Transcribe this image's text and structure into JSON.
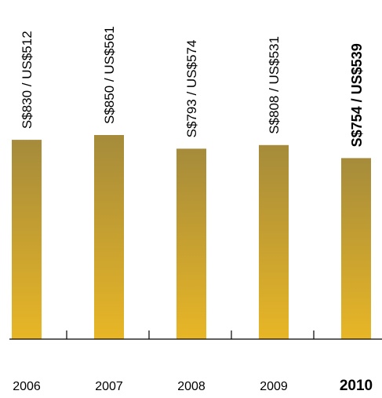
{
  "chart_data": {
    "type": "bar",
    "categories": [
      "2006",
      "2007",
      "2008",
      "2009",
      "2010"
    ],
    "values": [
      830,
      850,
      793,
      808,
      754
    ],
    "data_labels": [
      "S$830 / US$512",
      "S$850 / US$561",
      "S$793 / US$574",
      "S$808 / US$531",
      "S$754 / US$539"
    ],
    "highlight_index": 4,
    "title": "",
    "xlabel": "",
    "ylabel": "",
    "ylim": [
      0,
      850
    ],
    "grid": false,
    "legend": "none",
    "colors": {
      "bar_top": "#a58b3b",
      "bar_bottom": "#e8b626",
      "axis": "#000000",
      "text": "#000000"
    }
  }
}
